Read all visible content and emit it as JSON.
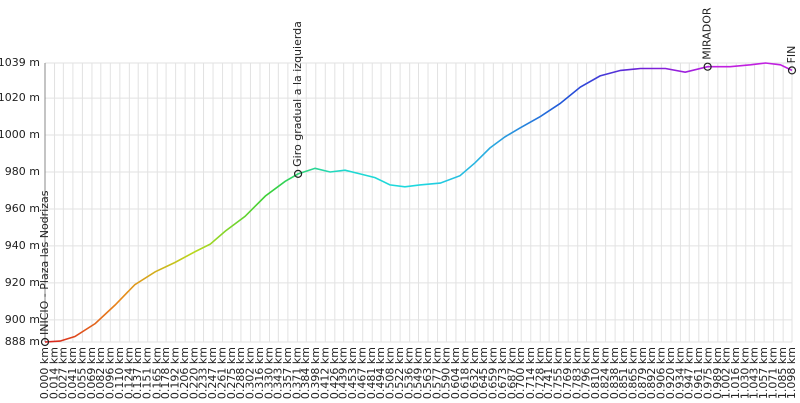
{
  "chart_data": {
    "type": "line",
    "ylim": [
      888,
      1039
    ],
    "xlim": [
      0,
      1.098
    ],
    "yticks": [
      {
        "value": 888,
        "label": "888 m"
      },
      {
        "value": 900,
        "label": "900 m"
      },
      {
        "value": 920,
        "label": "920 m"
      },
      {
        "value": 940,
        "label": "940 m"
      },
      {
        "value": 960,
        "label": "960 m"
      },
      {
        "value": 980,
        "label": "980 m"
      },
      {
        "value": 1000,
        "label": "1000 m"
      },
      {
        "value": 1020,
        "label": "1020 m"
      },
      {
        "value": 1039,
        "label": "1039 m"
      }
    ],
    "xticks": [
      {
        "value": 0.0,
        "label": "0.000 km"
      },
      {
        "value": 0.014,
        "label": "0.014 km"
      },
      {
        "value": 0.027,
        "label": "0.027 km"
      },
      {
        "value": 0.041,
        "label": "0.041 km"
      },
      {
        "value": 0.055,
        "label": "0.055 km"
      },
      {
        "value": 0.069,
        "label": "0.069 km"
      },
      {
        "value": 0.082,
        "label": "0.082 km"
      },
      {
        "value": 0.096,
        "label": "0.096 km"
      },
      {
        "value": 0.11,
        "label": "0.110 km"
      },
      {
        "value": 0.124,
        "label": "0.124 km"
      },
      {
        "value": 0.137,
        "label": "0.137 km"
      },
      {
        "value": 0.151,
        "label": "0.151 km"
      },
      {
        "value": 0.165,
        "label": "0.165 km"
      },
      {
        "value": 0.178,
        "label": "0.178 km"
      },
      {
        "value": 0.192,
        "label": "0.192 km"
      },
      {
        "value": 0.206,
        "label": "0.206 km"
      },
      {
        "value": 0.22,
        "label": "0.220 km"
      },
      {
        "value": 0.233,
        "label": "0.233 km"
      },
      {
        "value": 0.247,
        "label": "0.247 km"
      },
      {
        "value": 0.261,
        "label": "0.261 km"
      },
      {
        "value": 0.275,
        "label": "0.275 km"
      },
      {
        "value": 0.288,
        "label": "0.288 km"
      },
      {
        "value": 0.302,
        "label": "0.302 km"
      },
      {
        "value": 0.316,
        "label": "0.316 km"
      },
      {
        "value": 0.33,
        "label": "0.330 km"
      },
      {
        "value": 0.343,
        "label": "0.343 km"
      },
      {
        "value": 0.357,
        "label": "0.357 km"
      },
      {
        "value": 0.371,
        "label": "0.371 km"
      },
      {
        "value": 0.384,
        "label": "0.384 km"
      },
      {
        "value": 0.398,
        "label": "0.398 km"
      },
      {
        "value": 0.412,
        "label": "0.412 km"
      },
      {
        "value": 0.426,
        "label": "0.426 km"
      },
      {
        "value": 0.439,
        "label": "0.439 km"
      },
      {
        "value": 0.453,
        "label": "0.453 km"
      },
      {
        "value": 0.467,
        "label": "0.467 km"
      },
      {
        "value": 0.481,
        "label": "0.481 km"
      },
      {
        "value": 0.494,
        "label": "0.494 km"
      },
      {
        "value": 0.508,
        "label": "0.508 km"
      },
      {
        "value": 0.522,
        "label": "0.522 km"
      },
      {
        "value": 0.536,
        "label": "0.536 km"
      },
      {
        "value": 0.549,
        "label": "0.549 km"
      },
      {
        "value": 0.563,
        "label": "0.563 km"
      },
      {
        "value": 0.577,
        "label": "0.577 km"
      },
      {
        "value": 0.59,
        "label": "0.590 km"
      },
      {
        "value": 0.604,
        "label": "0.604 km"
      },
      {
        "value": 0.618,
        "label": "0.618 km"
      },
      {
        "value": 0.632,
        "label": "0.632 km"
      },
      {
        "value": 0.645,
        "label": "0.645 km"
      },
      {
        "value": 0.659,
        "label": "0.659 km"
      },
      {
        "value": 0.673,
        "label": "0.673 km"
      },
      {
        "value": 0.687,
        "label": "0.687 km"
      },
      {
        "value": 0.7,
        "label": "0.700 km"
      },
      {
        "value": 0.714,
        "label": "0.714 km"
      },
      {
        "value": 0.728,
        "label": "0.728 km"
      },
      {
        "value": 0.741,
        "label": "0.741 km"
      },
      {
        "value": 0.755,
        "label": "0.755 km"
      },
      {
        "value": 0.769,
        "label": "0.769 km"
      },
      {
        "value": 0.783,
        "label": "0.783 km"
      },
      {
        "value": 0.796,
        "label": "0.796 km"
      },
      {
        "value": 0.81,
        "label": "0.810 km"
      },
      {
        "value": 0.824,
        "label": "0.824 km"
      },
      {
        "value": 0.838,
        "label": "0.838 km"
      },
      {
        "value": 0.851,
        "label": "0.851 km"
      },
      {
        "value": 0.865,
        "label": "0.865 km"
      },
      {
        "value": 0.879,
        "label": "0.879 km"
      },
      {
        "value": 0.892,
        "label": "0.892 km"
      },
      {
        "value": 0.906,
        "label": "0.906 km"
      },
      {
        "value": 0.92,
        "label": "0.920 km"
      },
      {
        "value": 0.934,
        "label": "0.934 km"
      },
      {
        "value": 0.947,
        "label": "0.947 km"
      },
      {
        "value": 0.961,
        "label": "0.961 km"
      },
      {
        "value": 0.975,
        "label": "0.975 km"
      },
      {
        "value": 0.989,
        "label": "0.989 km"
      },
      {
        "value": 1.002,
        "label": "1.002 km"
      },
      {
        "value": 1.016,
        "label": "1.016 km"
      },
      {
        "value": 1.03,
        "label": "1.030 km"
      },
      {
        "value": 1.043,
        "label": "1.043 km"
      },
      {
        "value": 1.057,
        "label": "1.057 km"
      },
      {
        "value": 1.071,
        "label": "1.071 km"
      },
      {
        "value": 1.085,
        "label": "1.085 km"
      },
      {
        "value": 1.098,
        "label": "1.098 km"
      }
    ],
    "x": [
      0,
      0.022,
      0.044,
      0.074,
      0.103,
      0.132,
      0.162,
      0.191,
      0.221,
      0.243,
      0.265,
      0.294,
      0.324,
      0.353,
      0.372,
      0.397,
      0.419,
      0.441,
      0.463,
      0.485,
      0.507,
      0.529,
      0.551,
      0.581,
      0.61,
      0.632,
      0.654,
      0.676,
      0.699,
      0.728,
      0.757,
      0.787,
      0.816,
      0.846,
      0.875,
      0.912,
      0.941,
      0.974,
      1.007,
      1.037,
      1.059,
      1.081,
      1.098
    ],
    "values": [
      888,
      888.5,
      891,
      898,
      908,
      919,
      926,
      931,
      937,
      941,
      948,
      956,
      967,
      975,
      979,
      982,
      980,
      981,
      979,
      977,
      973,
      972,
      973,
      974,
      978,
      985,
      993,
      999,
      1004,
      1010,
      1017,
      1026,
      1032,
      1035,
      1036,
      1036,
      1034,
      1037,
      1037,
      1038,
      1039,
      1038,
      1035
    ],
    "line_colors": [
      "#d81e1e",
      "#e8881a",
      "#b8d81e",
      "#38d038",
      "#1ed8d0",
      "#1ed8e0",
      "#2aa8e0",
      "#2050d8",
      "#7020d8",
      "#c020e0",
      "#c020e0"
    ],
    "grid": true,
    "annotations": [
      {
        "label": "INICIO - Plaza las Nodrizas",
        "x": 0,
        "y": 888
      },
      {
        "label": "Giro gradual a la izquierda",
        "x": 0.372,
        "y": 979
      },
      {
        "label": "MIRADOR",
        "x": 0.974,
        "y": 1037
      },
      {
        "label": "FIN",
        "x": 1.098,
        "y": 1035
      }
    ]
  }
}
